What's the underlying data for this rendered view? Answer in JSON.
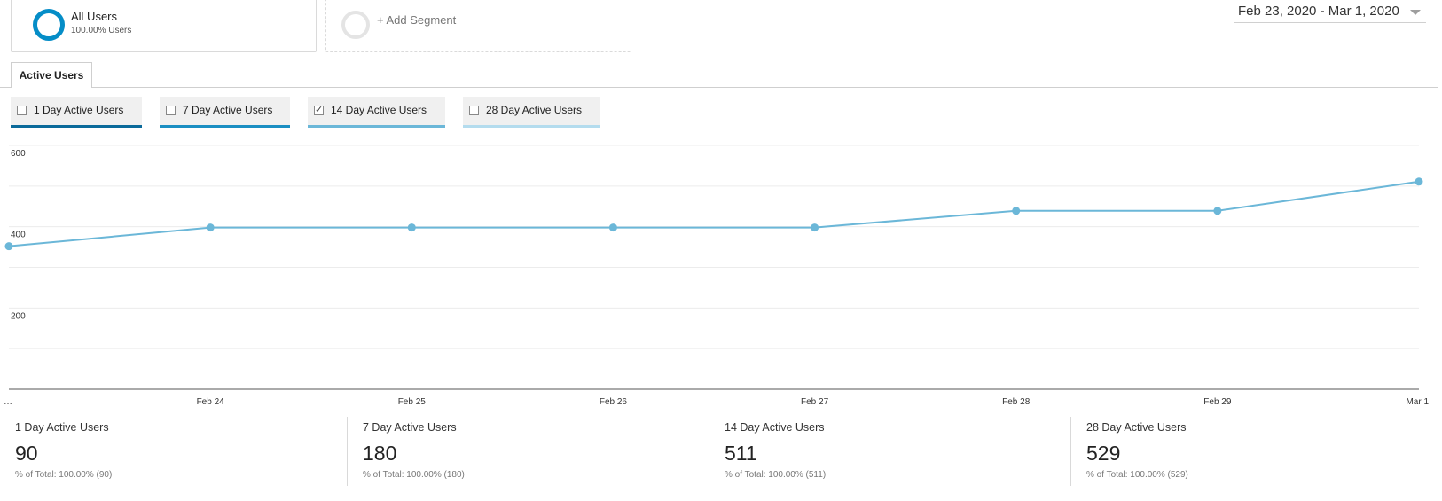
{
  "segments": {
    "all_users": {
      "title": "All Users",
      "subtitle": "100.00% Users",
      "color": "#058dc7"
    },
    "add_segment": {
      "label": "+ Add Segment"
    }
  },
  "date_range": {
    "label": "Feb 23, 2020 - Mar 1, 2020"
  },
  "tabs": [
    {
      "label": "Active Users",
      "active": true
    }
  ],
  "metrics": [
    {
      "label": "1 Day Active Users",
      "checked": false,
      "color": "#0b6a9a"
    },
    {
      "label": "7 Day Active Users",
      "checked": false,
      "color": "#1b8ec2"
    },
    {
      "label": "14 Day Active Users",
      "checked": true,
      "color": "#6bb7d8"
    },
    {
      "label": "28 Day Active Users",
      "checked": false,
      "color": "#b4dcee"
    }
  ],
  "chart_data": {
    "type": "line",
    "x": [
      "…",
      "Feb 24",
      "Feb 25",
      "Feb 26",
      "Feb 27",
      "Feb 28",
      "Feb 29",
      "Mar 1"
    ],
    "series": [
      {
        "name": "14 Day Active Users",
        "values": [
          352,
          398,
          398,
          398,
          398,
          439,
          439,
          511
        ],
        "color": "#6bb7d8"
      }
    ],
    "y_ticks": [
      200,
      400,
      600
    ],
    "ylim": [
      0,
      600
    ],
    "grid": true,
    "legend": "none"
  },
  "totals": [
    {
      "name": "1 Day Active Users",
      "value": "90",
      "sub": "% of Total: 100.00% (90)"
    },
    {
      "name": "7 Day Active Users",
      "value": "180",
      "sub": "% of Total: 100.00% (180)"
    },
    {
      "name": "14 Day Active Users",
      "value": "511",
      "sub": "% of Total: 100.00% (511)"
    },
    {
      "name": "28 Day Active Users",
      "value": "529",
      "sub": "% of Total: 100.00% (529)"
    }
  ]
}
